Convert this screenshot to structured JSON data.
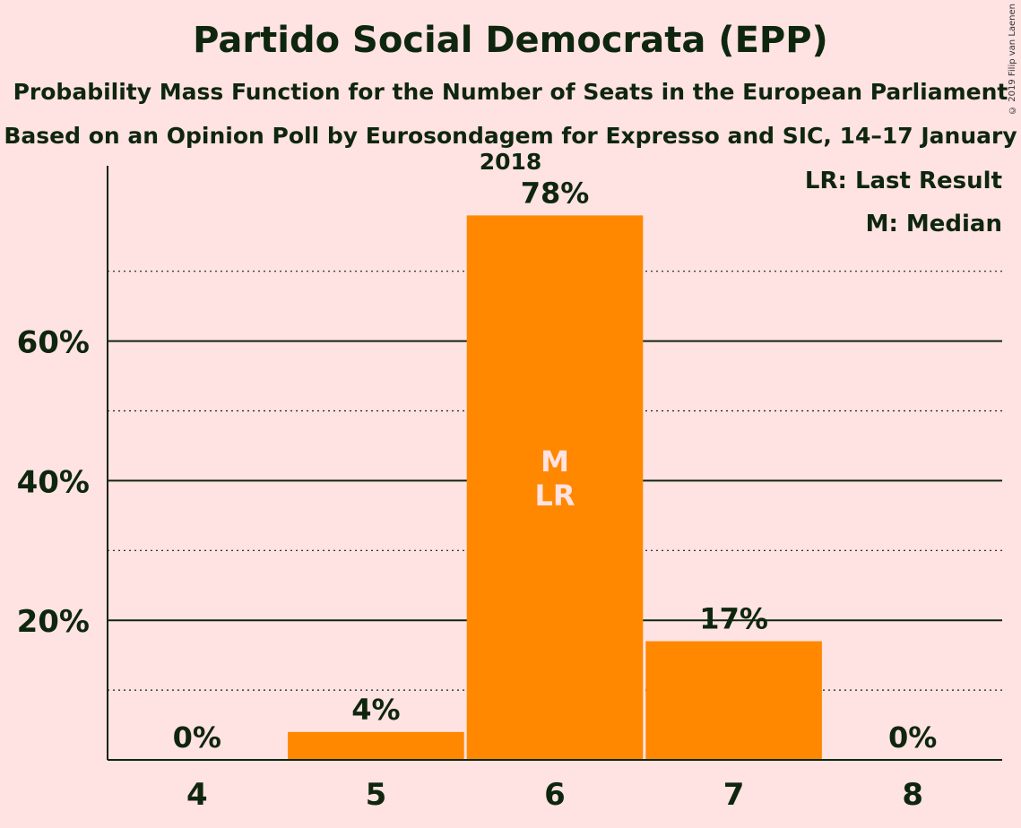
{
  "chart_data": {
    "type": "bar",
    "title": "Partido Social Democrata (EPP)",
    "subtitle": "Probability Mass Function for the Number of Seats in the European Parliament",
    "subtitle2": "Based on an Opinion Poll by Eurosondagem for Expresso and SIC, 14–17 January 2018",
    "categories": [
      "4",
      "5",
      "6",
      "7",
      "8"
    ],
    "values": [
      0,
      4,
      78,
      17,
      0
    ],
    "data_labels": [
      "0%",
      "4%",
      "78%",
      "17%",
      "0%"
    ],
    "bar_annotations": [
      "",
      "",
      "M\nLR",
      "",
      ""
    ],
    "yticks": [
      20,
      40,
      60
    ],
    "ytick_labels": [
      "20%",
      "40%",
      "60%"
    ],
    "minor_gridlines": [
      10,
      30,
      50,
      70
    ],
    "ylim": [
      0,
      85
    ],
    "legend": [
      "LR: Last Result",
      "M: Median"
    ],
    "legend_position": "top-right",
    "grid": true,
    "bar_color": "#FF8800",
    "background_color": "#FFE2E2",
    "text_color": "#0E260E"
  },
  "copyright": "© 2019 Filip van Laenen"
}
